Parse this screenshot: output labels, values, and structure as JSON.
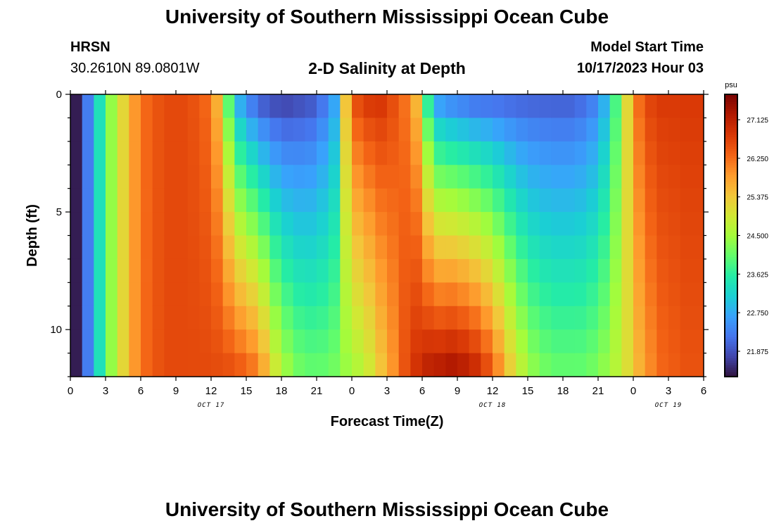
{
  "header": {
    "title": "University of Southern Mississippi Ocean Cube",
    "station": "HRSN",
    "coords": "30.2610N  89.0801W",
    "subtitle": "2-D Salinity at Depth",
    "model_start_label": "Model Start Time",
    "model_start_value": "10/17/2023 Hour 03"
  },
  "footer": {
    "title": "University of Southern Mississippi Ocean Cube"
  },
  "colors": {
    "colormap": [
      "#30123b",
      "#4145ab",
      "#4675ed",
      "#39a2fc",
      "#1bcfd4",
      "#24eca6",
      "#61fc6c",
      "#a4fc3b",
      "#d1e834",
      "#f3c63a",
      "#fe9b2d",
      "#f36315",
      "#d93806",
      "#b11901",
      "#7a0402"
    ]
  },
  "chart_data": {
    "type": "heatmap",
    "title": "2-D Salinity at Depth",
    "xlabel": "Forecast Time(Z)",
    "ylabel": "Depth (ft)",
    "x_range_hours": [
      0,
      54
    ],
    "y_range_ft": [
      0,
      12
    ],
    "x_tick_labels": [
      "0",
      "3",
      "6",
      "9",
      "12",
      "15",
      "18",
      "21",
      "0",
      "3",
      "6",
      "9",
      "12",
      "15",
      "18",
      "21",
      "0",
      "3",
      "6"
    ],
    "y_tick_values": [
      0,
      5,
      10
    ],
    "y_tick_labels": [
      "0",
      "5",
      "10"
    ],
    "date_labels": [
      {
        "label": "OCT 17",
        "hour": 12
      },
      {
        "label": "OCT 18",
        "hour": 36
      },
      {
        "label": "OCT 19",
        "hour": 51
      }
    ],
    "colorbar": {
      "unit": "psu",
      "min": 21.3,
      "max": 27.7,
      "tick_values": [
        21.875,
        22.75,
        23.625,
        24.5,
        25.375,
        26.25,
        27.125
      ],
      "tick_labels": [
        "21.875",
        "22.750",
        "23.625",
        "24.500",
        "25.375",
        "26.250",
        "27.125"
      ]
    },
    "depth_levels_ft": [
      0,
      1,
      2,
      3,
      4,
      5,
      6,
      7,
      8,
      9,
      10,
      11,
      12
    ],
    "times_hours": [
      0,
      1,
      2,
      3,
      4,
      5,
      6,
      7,
      8,
      9,
      10,
      11,
      12,
      13,
      14,
      15,
      16,
      17,
      18,
      19,
      20,
      21,
      22,
      23,
      24,
      25,
      26,
      27,
      28,
      29,
      30,
      31,
      32,
      33,
      34,
      35,
      36,
      37,
      38,
      39,
      40,
      41,
      42,
      43,
      44,
      45,
      46,
      47,
      48,
      49,
      50,
      51,
      52,
      53,
      54
    ],
    "salinity_surface_psu": [
      21.4,
      22.3,
      23.4,
      24.4,
      25.2,
      25.9,
      26.3,
      26.5,
      26.6,
      26.6,
      26.5,
      26.3,
      25.6,
      23.8,
      22.5,
      22.0,
      21.7,
      21.6,
      21.6,
      21.7,
      21.8,
      22.1,
      22.6,
      25.5,
      26.7,
      26.9,
      26.9,
      26.6,
      26.2,
      25.5,
      23.4,
      22.3,
      22.1,
      22.0,
      21.9,
      21.9,
      21.9,
      21.9,
      21.9,
      21.9,
      21.9,
      21.9,
      21.9,
      22.0,
      22.2,
      22.7,
      23.8,
      25.2,
      26.3,
      26.7,
      26.8,
      26.8,
      26.8,
      26.8,
      26.8
    ],
    "salinity_bottom_psu": [
      21.4,
      22.3,
      23.4,
      24.4,
      25.2,
      25.9,
      26.3,
      26.5,
      26.6,
      26.6,
      26.6,
      26.6,
      26.6,
      26.6,
      26.5,
      26.3,
      25.8,
      25.0,
      24.5,
      24.2,
      24.1,
      24.1,
      24.2,
      24.4,
      24.6,
      24.9,
      25.4,
      25.9,
      26.5,
      26.9,
      27.2,
      27.3,
      27.4,
      27.3,
      27.1,
      26.7,
      26.1,
      25.4,
      24.8,
      24.4,
      24.2,
      24.1,
      24.1,
      24.1,
      24.2,
      24.4,
      24.7,
      25.1,
      25.6,
      26.0,
      26.3,
      26.4,
      26.5,
      26.5,
      26.5
    ]
  }
}
